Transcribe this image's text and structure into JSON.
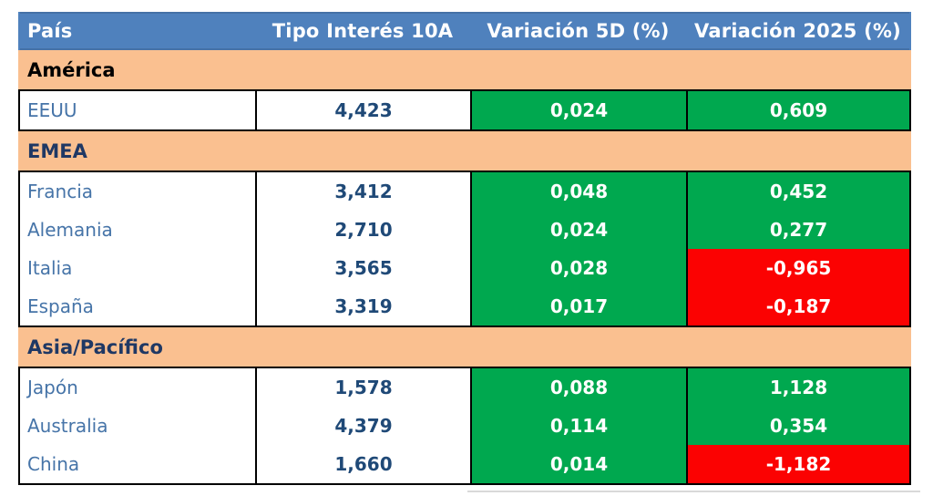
{
  "colors": {
    "header_bg": "#4F81BD",
    "header_text": "#FFFFFF",
    "section_bg": "#FAC090",
    "row_bg": "#FFFFFF",
    "positive_bg": "#00A84F",
    "negative_bg": "#FB0202",
    "variation_text": "#FFFFFF",
    "country_text": "#4674A8",
    "rate_text": "#1F4977",
    "border": "#000000",
    "artifact_gray": "#D9D9D9"
  },
  "chart_data": {
    "type": "table",
    "columns": [
      "País",
      "Tipo Interés 10A",
      "Variación 5D (%)",
      "Variación 2025 (%)"
    ],
    "sections": [
      {
        "name": "América",
        "name_color": "#000000",
        "rows": [
          {
            "country": "EEUU",
            "rate": "4,423",
            "var_5d": "0,024",
            "var_2025": "0,609"
          }
        ]
      },
      {
        "name": "EMEA",
        "name_color": "#1F3864",
        "rows": [
          {
            "country": "Francia",
            "rate": "3,412",
            "var_5d": "0,048",
            "var_2025": "0,452"
          },
          {
            "country": "Alemania",
            "rate": "2,710",
            "var_5d": "0,024",
            "var_2025": "0,277"
          },
          {
            "country": "Italia",
            "rate": "3,565",
            "var_5d": "0,028",
            "var_2025": "-0,965"
          },
          {
            "country": "España",
            "rate": "3,319",
            "var_5d": "0,017",
            "var_2025": "-0,187"
          }
        ]
      },
      {
        "name": "Asia/Pacífico",
        "name_color": "#1F3864",
        "rows": [
          {
            "country": "Japón",
            "rate": "1,578",
            "var_5d": "0,088",
            "var_2025": "1,128"
          },
          {
            "country": "Australia",
            "rate": "4,379",
            "var_5d": "0,114",
            "var_2025": "0,354"
          },
          {
            "country": "China",
            "rate": "1,660",
            "var_5d": "0,014",
            "var_2025": "-1,182"
          }
        ]
      }
    ]
  }
}
